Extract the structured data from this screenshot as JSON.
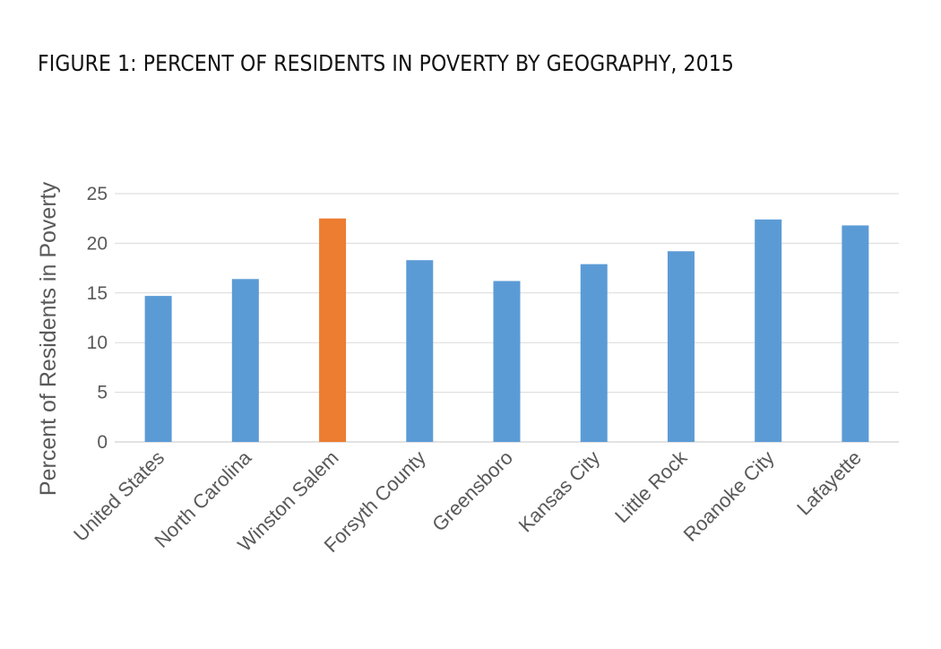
{
  "title": "FIGURE 1: PERCENT OF RESIDENTS IN POVERTY BY GEOGRAPHY, 2015",
  "colors": {
    "default_bar": "#5b9bd5",
    "highlight_bar": "#ed7d31",
    "gridline": "#d9d9d9",
    "text": "#595959"
  },
  "chart_data": {
    "type": "bar",
    "title": "FIGURE 1: PERCENT OF RESIDENTS IN POVERTY BY GEOGRAPHY, 2015",
    "xlabel": "",
    "ylabel": "Percent of Residents in Poverty",
    "ylim": [
      0,
      25
    ],
    "yticks": [
      0,
      5,
      10,
      15,
      20,
      25
    ],
    "grid": true,
    "legend": "none",
    "categories": [
      "United States",
      "North Carolina",
      "Winston Salem",
      "Forsyth County",
      "Greensboro",
      "Kansas City",
      "Little Rock",
      "Roanoke City",
      "Lafayette"
    ],
    "values": [
      14.7,
      16.4,
      22.5,
      18.3,
      16.2,
      17.9,
      19.2,
      22.4,
      21.8
    ],
    "highlight": "Winston Salem"
  }
}
